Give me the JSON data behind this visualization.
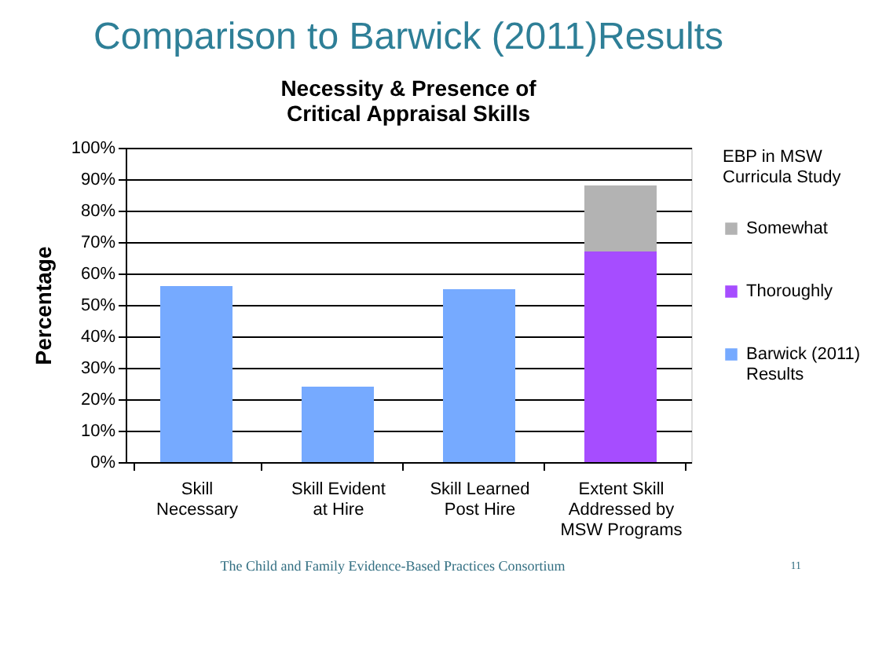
{
  "chart_data": {
    "type": "bar",
    "title": "Comparison to Barwick (2011)Results",
    "subtitle": "Necessity & Presence of Critical Appraisal Skills",
    "ylabel": "Percentage",
    "legend_title": "EBP in MSW Curricula Study",
    "categories": [
      "Skill Necessary",
      "Skill Evident at Hire",
      "Skill Learned Post Hire",
      "Extent Skill Addressed by MSW Programs"
    ],
    "stacked": true,
    "series": [
      {
        "name": "Barwick (2011) Results",
        "color": "#76aaff",
        "values": [
          56,
          24,
          55,
          null
        ]
      },
      {
        "name": "Thoroughly",
        "color": "#a64dff",
        "values": [
          null,
          null,
          null,
          67
        ]
      },
      {
        "name": "Somewhat",
        "color": "#b3b3b3",
        "values": [
          null,
          null,
          null,
          21
        ]
      }
    ],
    "ylim": [
      0,
      100
    ],
    "yticks": [
      {
        "value": 0,
        "label": "0%"
      },
      {
        "value": 10,
        "label": "10%"
      },
      {
        "value": 20,
        "label": "20%"
      },
      {
        "value": 30,
        "label": "30%"
      },
      {
        "value": 40,
        "label": "40%"
      },
      {
        "value": 50,
        "label": "50%"
      },
      {
        "value": 60,
        "label": "60%"
      },
      {
        "value": 70,
        "label": "70%"
      },
      {
        "value": 80,
        "label": "80%"
      },
      {
        "value": 90,
        "label": "90%"
      },
      {
        "value": 100,
        "label": "100%"
      }
    ],
    "grid": "y",
    "legend": "right",
    "annotations": [
      "The Child and Family Evidence-Based Practices Consortium",
      "11"
    ]
  }
}
